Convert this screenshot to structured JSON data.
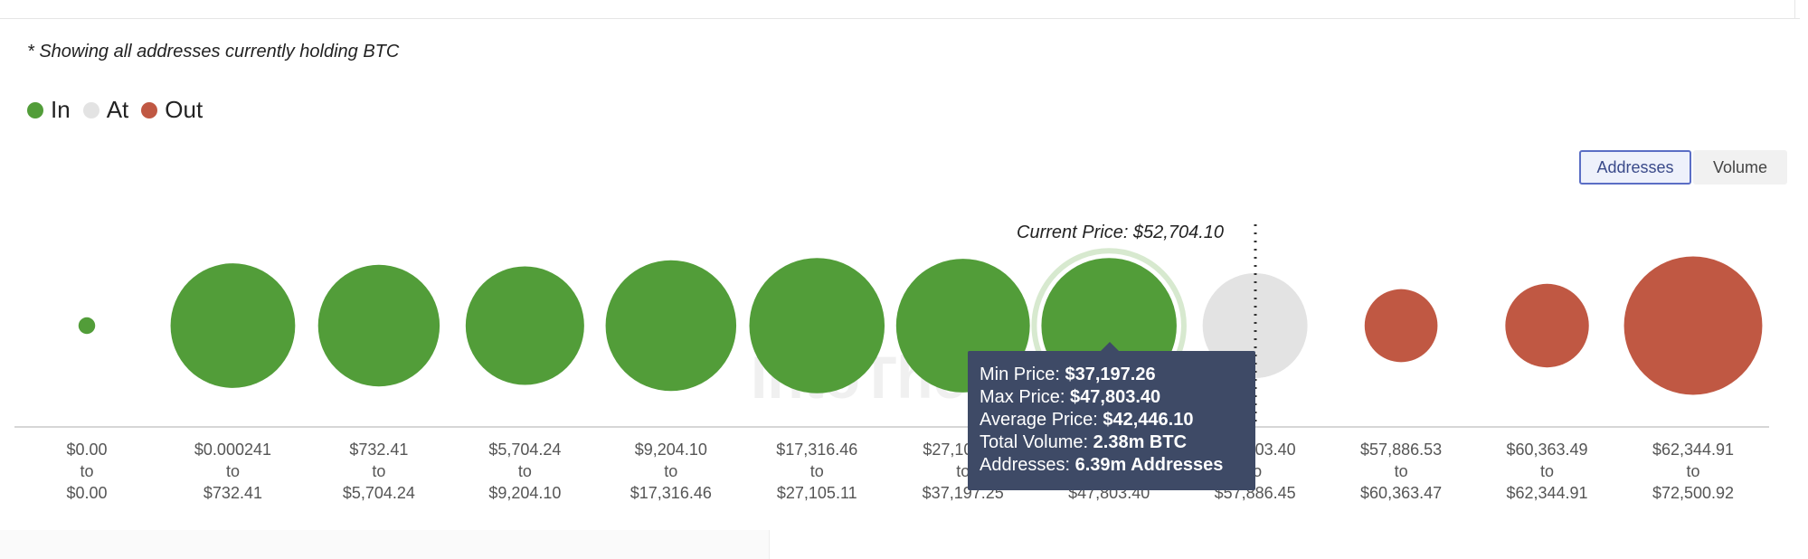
{
  "note": "* Showing all addresses currently holding BTC",
  "legend": [
    {
      "label": "In",
      "color": "#529d39"
    },
    {
      "label": "At",
      "color": "#e3e3e3"
    },
    {
      "label": "Out",
      "color": "#c05843"
    }
  ],
  "toggle": {
    "addresses_label": "Addresses",
    "volume_label": "Volume",
    "selected": "Addresses"
  },
  "watermark": "IntoThe",
  "chart_data": {
    "type": "bubble",
    "current_price_label": "Current Price: $52,704.10",
    "bubbles": [
      {
        "from": "$0.00",
        "to": "$0.00",
        "status": "In",
        "size": 0.11
      },
      {
        "from": "$0.000241",
        "to": "$732.41",
        "status": "In",
        "size": 0.82
      },
      {
        "from": "$732.41",
        "to": "$5,704.24",
        "status": "In",
        "size": 0.8
      },
      {
        "from": "$5,704.24",
        "to": "$9,204.10",
        "status": "In",
        "size": 0.78
      },
      {
        "from": "$9,204.10",
        "to": "$17,316.46",
        "status": "In",
        "size": 0.86
      },
      {
        "from": "$17,316.46",
        "to": "$27,105.11",
        "status": "In",
        "size": 0.89
      },
      {
        "from": "$27,105.11",
        "to": "$37,197.25",
        "status": "In",
        "size": 0.88
      },
      {
        "from": "$37,197.26",
        "to": "$47,803.40",
        "status": "In",
        "size": 0.89,
        "highlighted": true
      },
      {
        "from": "$47,803.40",
        "to": "$57,886.45",
        "status": "At",
        "size": 0.69
      },
      {
        "from": "$57,886.53",
        "to": "$60,363.47",
        "status": "Out",
        "size": 0.48
      },
      {
        "from": "$60,363.49",
        "to": "$62,344.91",
        "status": "Out",
        "size": 0.55
      },
      {
        "from": "$62,344.91",
        "to": "$72,500.92",
        "status": "Out",
        "size": 0.91
      }
    ],
    "tooltip": {
      "min_label": "Min Price:",
      "min_value": "$37,197.26",
      "max_label": "Max Price:",
      "max_value": "$47,803.40",
      "avg_label": "Average Price:",
      "avg_value": "$42,446.10",
      "vol_label": "Total Volume:",
      "vol_value": "2.38m BTC",
      "addr_label": "Addresses:",
      "addr_value": "6.39m Addresses"
    }
  }
}
